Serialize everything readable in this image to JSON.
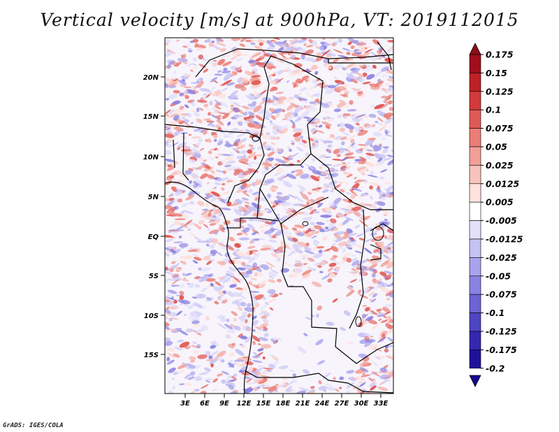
{
  "title": "Vertical velocity [m/s] at 900hPa, VT: 2019112015",
  "footer": "GrADS: IGES/COLA",
  "map": {
    "lat_ticks": [
      "20N",
      "15N",
      "10N",
      "5N",
      "EQ",
      "5S",
      "10S",
      "15S"
    ],
    "lon_ticks": [
      "3E",
      "6E",
      "9E",
      "12E",
      "15E",
      "18E",
      "21E",
      "24E",
      "27E",
      "30E",
      "33E"
    ],
    "field": "vertical velocity",
    "pressure_level": "900hPa",
    "valid_time": "2019112015"
  },
  "colorbar": {
    "labels": [
      "0.175",
      "0.15",
      "0.125",
      "0.1",
      "0.075",
      "0.05",
      "0.025",
      "0.0125",
      "0.005",
      "-0.005",
      "-0.0125",
      "-0.025",
      "-0.05",
      "-0.075",
      "-0.1",
      "-0.125",
      "-0.175",
      "-0.2"
    ],
    "colors": [
      "#a00e1c",
      "#bd2227",
      "#d3393a",
      "#e05a55",
      "#ea7d75",
      "#f29f98",
      "#f8c3bd",
      "#fde2de",
      "#ffffff",
      "#e2e0fb",
      "#c6c2f4",
      "#a8a3ec",
      "#8a82e2",
      "#6c63d4",
      "#4e45c4",
      "#3527b0",
      "#1e129a"
    ],
    "top_arrow_color": "#8f0b18",
    "bottom_arrow_color": "#18088f"
  }
}
